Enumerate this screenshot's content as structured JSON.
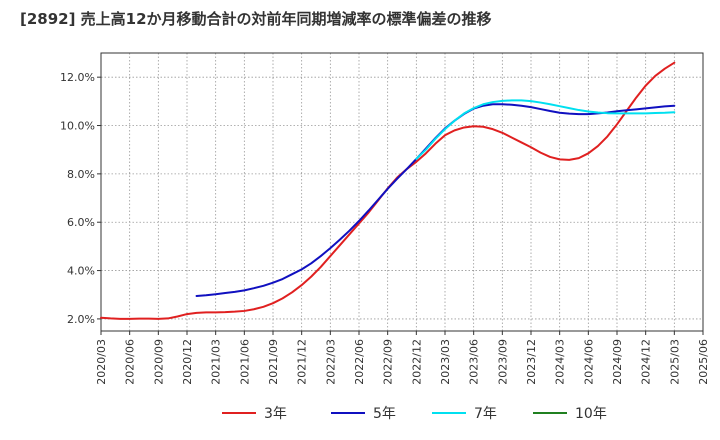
{
  "title": "[2892]  売上高12か月移動合計の対前年同期増減率の標準偏差の推移",
  "chart_data": {
    "type": "line",
    "ylim": [
      1.5,
      13.0
    ],
    "yticks": [
      2.0,
      4.0,
      6.0,
      8.0,
      10.0,
      12.0
    ],
    "ytick_labels": [
      "2.0%",
      "4.0%",
      "6.0%",
      "8.0%",
      "10.0%",
      "12.0%"
    ],
    "xticks": [
      "2020/03",
      "2020/06",
      "2020/09",
      "2020/12",
      "2021/03",
      "2021/06",
      "2021/09",
      "2021/12",
      "2022/03",
      "2022/06",
      "2022/09",
      "2022/12",
      "2023/03",
      "2023/06",
      "2023/09",
      "2023/12",
      "2024/03",
      "2024/06",
      "2024/09",
      "2024/12",
      "2025/03",
      "2025/06"
    ],
    "grid": true,
    "legend_position": "bottom",
    "series": [
      {
        "name": "3年",
        "color": "#e02020",
        "points": [
          [
            "2020/03",
            2.05
          ],
          [
            "2020/04",
            2.02
          ],
          [
            "2020/05",
            2.0
          ],
          [
            "2020/06",
            2.0
          ],
          [
            "2020/07",
            2.01
          ],
          [
            "2020/08",
            2.01
          ],
          [
            "2020/09",
            2.0
          ],
          [
            "2020/10",
            2.02
          ],
          [
            "2020/11",
            2.1
          ],
          [
            "2020/12",
            2.2
          ],
          [
            "2021/01",
            2.25
          ],
          [
            "2021/02",
            2.27
          ],
          [
            "2021/03",
            2.27
          ],
          [
            "2021/04",
            2.28
          ],
          [
            "2021/05",
            2.3
          ],
          [
            "2021/06",
            2.33
          ],
          [
            "2021/07",
            2.4
          ],
          [
            "2021/08",
            2.5
          ],
          [
            "2021/09",
            2.65
          ],
          [
            "2021/10",
            2.85
          ],
          [
            "2021/11",
            3.1
          ],
          [
            "2021/12",
            3.4
          ],
          [
            "2022/01",
            3.75
          ],
          [
            "2022/02",
            4.15
          ],
          [
            "2022/03",
            4.6
          ],
          [
            "2022/04",
            5.05
          ],
          [
            "2022/05",
            5.5
          ],
          [
            "2022/06",
            5.95
          ],
          [
            "2022/07",
            6.4
          ],
          [
            "2022/08",
            6.9
          ],
          [
            "2022/09",
            7.4
          ],
          [
            "2022/10",
            7.85
          ],
          [
            "2022/11",
            8.2
          ],
          [
            "2022/12",
            8.5
          ],
          [
            "2023/01",
            8.85
          ],
          [
            "2023/02",
            9.25
          ],
          [
            "2023/03",
            9.6
          ],
          [
            "2023/04",
            9.8
          ],
          [
            "2023/05",
            9.92
          ],
          [
            "2023/06",
            9.97
          ],
          [
            "2023/07",
            9.95
          ],
          [
            "2023/08",
            9.85
          ],
          [
            "2023/09",
            9.7
          ],
          [
            "2023/10",
            9.5
          ],
          [
            "2023/11",
            9.3
          ],
          [
            "2023/12",
            9.1
          ],
          [
            "2024/01",
            8.88
          ],
          [
            "2024/02",
            8.7
          ],
          [
            "2024/03",
            8.6
          ],
          [
            "2024/04",
            8.58
          ],
          [
            "2024/05",
            8.65
          ],
          [
            "2024/06",
            8.85
          ],
          [
            "2024/07",
            9.15
          ],
          [
            "2024/08",
            9.55
          ],
          [
            "2024/09",
            10.05
          ],
          [
            "2024/10",
            10.6
          ],
          [
            "2024/11",
            11.15
          ],
          [
            "2024/12",
            11.65
          ],
          [
            "2025/01",
            12.05
          ],
          [
            "2025/02",
            12.35
          ],
          [
            "2025/03",
            12.6
          ]
        ]
      },
      {
        "name": "5年",
        "color": "#1010c0",
        "points": [
          [
            "2021/01",
            2.95
          ],
          [
            "2021/02",
            2.98
          ],
          [
            "2021/03",
            3.02
          ],
          [
            "2021/04",
            3.07
          ],
          [
            "2021/05",
            3.12
          ],
          [
            "2021/06",
            3.18
          ],
          [
            "2021/07",
            3.27
          ],
          [
            "2021/08",
            3.37
          ],
          [
            "2021/09",
            3.5
          ],
          [
            "2021/10",
            3.65
          ],
          [
            "2021/11",
            3.85
          ],
          [
            "2021/12",
            4.05
          ],
          [
            "2022/01",
            4.3
          ],
          [
            "2022/02",
            4.6
          ],
          [
            "2022/03",
            4.93
          ],
          [
            "2022/04",
            5.28
          ],
          [
            "2022/05",
            5.65
          ],
          [
            "2022/06",
            6.05
          ],
          [
            "2022/07",
            6.48
          ],
          [
            "2022/08",
            6.93
          ],
          [
            "2022/09",
            7.38
          ],
          [
            "2022/10",
            7.8
          ],
          [
            "2022/11",
            8.2
          ],
          [
            "2022/12",
            8.62
          ],
          [
            "2023/01",
            9.05
          ],
          [
            "2023/02",
            9.48
          ],
          [
            "2023/03",
            9.88
          ],
          [
            "2023/04",
            10.2
          ],
          [
            "2023/05",
            10.48
          ],
          [
            "2023/06",
            10.7
          ],
          [
            "2023/07",
            10.82
          ],
          [
            "2023/08",
            10.88
          ],
          [
            "2023/09",
            10.88
          ],
          [
            "2023/10",
            10.86
          ],
          [
            "2023/11",
            10.82
          ],
          [
            "2023/12",
            10.76
          ],
          [
            "2024/01",
            10.68
          ],
          [
            "2024/02",
            10.6
          ],
          [
            "2024/03",
            10.53
          ],
          [
            "2024/04",
            10.49
          ],
          [
            "2024/05",
            10.47
          ],
          [
            "2024/06",
            10.47
          ],
          [
            "2024/07",
            10.5
          ],
          [
            "2024/08",
            10.54
          ],
          [
            "2024/09",
            10.59
          ],
          [
            "2024/10",
            10.63
          ],
          [
            "2024/11",
            10.67
          ],
          [
            "2024/12",
            10.71
          ],
          [
            "2025/01",
            10.75
          ],
          [
            "2025/02",
            10.79
          ],
          [
            "2025/03",
            10.82
          ]
        ]
      },
      {
        "name": "7年",
        "color": "#00e0f0",
        "points": [
          [
            "2022/12",
            8.62
          ],
          [
            "2023/01",
            9.0
          ],
          [
            "2023/02",
            9.45
          ],
          [
            "2023/03",
            9.85
          ],
          [
            "2023/04",
            10.2
          ],
          [
            "2023/05",
            10.5
          ],
          [
            "2023/06",
            10.72
          ],
          [
            "2023/07",
            10.88
          ],
          [
            "2023/08",
            10.97
          ],
          [
            "2023/09",
            11.02
          ],
          [
            "2023/10",
            11.04
          ],
          [
            "2023/11",
            11.04
          ],
          [
            "2023/12",
            11.01
          ],
          [
            "2024/01",
            10.95
          ],
          [
            "2024/02",
            10.88
          ],
          [
            "2024/03",
            10.8
          ],
          [
            "2024/04",
            10.72
          ],
          [
            "2024/05",
            10.64
          ],
          [
            "2024/06",
            10.58
          ],
          [
            "2024/07",
            10.54
          ],
          [
            "2024/08",
            10.51
          ],
          [
            "2024/09",
            10.5
          ],
          [
            "2024/10",
            10.5
          ],
          [
            "2024/11",
            10.5
          ],
          [
            "2024/12",
            10.5
          ],
          [
            "2025/01",
            10.52
          ],
          [
            "2025/02",
            10.53
          ],
          [
            "2025/03",
            10.55
          ]
        ]
      },
      {
        "name": "10年",
        "color": "#208020",
        "points": []
      }
    ]
  }
}
